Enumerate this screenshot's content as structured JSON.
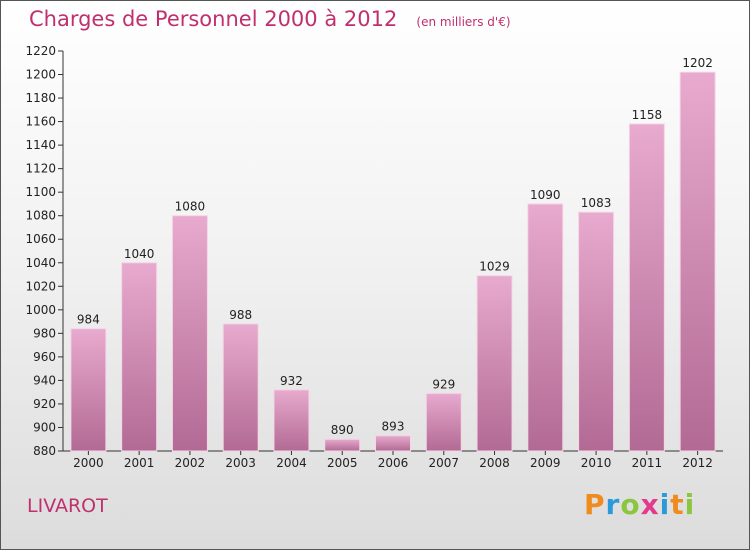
{
  "title": "Charges de Personnel 2000 à 2012",
  "subtitle": "(en milliers d'€)",
  "place": "LIVAROT",
  "logo": [
    "P",
    "r",
    "o",
    "x",
    "i",
    "t",
    "i"
  ],
  "colors": {
    "accent": "#c0306e",
    "bar_top": "#e8aace",
    "bar_bottom": "#b26a94"
  },
  "chart_data": {
    "type": "bar",
    "title": "Charges de Personnel 2000 à 2012",
    "subtitle": "(en milliers d'€)",
    "categories": [
      "2000",
      "2001",
      "2002",
      "2003",
      "2004",
      "2005",
      "2006",
      "2007",
      "2008",
      "2009",
      "2010",
      "2011",
      "2012"
    ],
    "values": [
      984,
      1040,
      1080,
      988,
      932,
      890,
      893,
      929,
      1029,
      1090,
      1083,
      1158,
      1202
    ],
    "ylim": [
      880,
      1220
    ],
    "ytick_step": 20,
    "grid": false,
    "xlabel": "",
    "ylabel": ""
  }
}
